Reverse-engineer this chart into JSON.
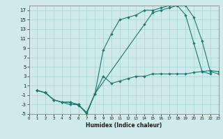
{
  "xlabel": "Humidex (Indice chaleur)",
  "bg_color": "#ceeaea",
  "line_color": "#1a7a6e",
  "grid_color": "#a8d4d4",
  "xlim": [
    0,
    23
  ],
  "ylim": [
    -5,
    18
  ],
  "xticks": [
    0,
    1,
    2,
    3,
    4,
    5,
    6,
    7,
    8,
    9,
    10,
    11,
    12,
    13,
    14,
    15,
    16,
    17,
    18,
    19,
    20,
    21,
    22,
    23
  ],
  "yticks": [
    -5,
    -3,
    -1,
    1,
    3,
    5,
    7,
    9,
    11,
    13,
    15,
    17
  ],
  "line1_x": [
    1,
    2,
    3,
    4,
    5,
    6,
    7,
    8,
    9,
    10,
    11,
    12,
    13,
    14,
    15,
    16,
    17,
    18,
    19,
    20,
    21,
    22
  ],
  "line1_y": [
    0,
    -0.5,
    -2,
    -2.5,
    -2.5,
    -3,
    -4.7,
    -0.7,
    8.5,
    12,
    15,
    15.5,
    16,
    17,
    17,
    17.5,
    18,
    18,
    16,
    10,
    4,
    3.5
  ],
  "line2_x": [
    1,
    2,
    3,
    4,
    5,
    6,
    7,
    8,
    14,
    15,
    16,
    17,
    18,
    19,
    20,
    21,
    22,
    23
  ],
  "line2_y": [
    0,
    -0.5,
    -2,
    -2.5,
    -2.5,
    -3.2,
    -4.7,
    -0.7,
    14,
    16.5,
    17,
    17.5,
    18,
    18,
    15.5,
    10.5,
    4,
    3.5
  ],
  "line3_x": [
    1,
    2,
    3,
    4,
    5,
    6,
    7,
    8,
    9,
    10,
    11,
    12,
    13,
    14,
    15,
    16,
    17,
    18,
    19,
    20,
    21,
    22,
    23
  ],
  "line3_y": [
    0,
    -0.5,
    -2,
    -2.5,
    -3,
    -3,
    -5,
    -0.7,
    3,
    1.5,
    2,
    2.5,
    3,
    3,
    3.5,
    3.5,
    3.5,
    3.5,
    3.5,
    3.8,
    4,
    4.2,
    4
  ]
}
